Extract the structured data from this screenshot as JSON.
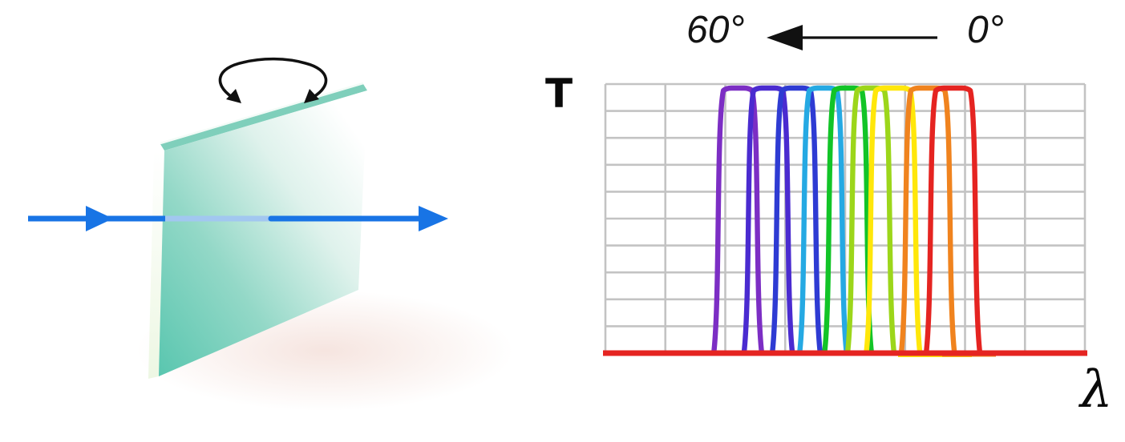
{
  "labels": {
    "y_axis": "T",
    "x_axis": "λ",
    "tilt_max": "60°",
    "tilt_min": "0°"
  },
  "colors": {
    "beam": "#1874E5",
    "beam_light": "#A2C7F0",
    "ink": "#111111",
    "grid": "#C3C3C3",
    "plate_teal_deep": "#59C6AF",
    "plate_teal_mid": "#93D8C7",
    "plate_bevel": "#7FCFBB",
    "plate_edge_pale": "#EDF7E3",
    "shadow_pink": "#F4E0DA"
  },
  "chart_data": {
    "type": "line",
    "title": "",
    "xlabel": "λ",
    "ylabel": "T",
    "x_range_relative": [
      0,
      1
    ],
    "y_range": [
      0,
      1
    ],
    "grid": {
      "columns": 8,
      "rows": 10,
      "visible": true
    },
    "baseline_value": 0,
    "peak_value": 1,
    "legend": "none",
    "series": [
      {
        "name": "passband-violet",
        "color": "#7C2EC4",
        "band_start": 0.226,
        "band_end": 0.326,
        "peak": 1
      },
      {
        "name": "passband-indigo",
        "color": "#4A2BD0",
        "band_start": 0.289,
        "band_end": 0.39,
        "peak": 1
      },
      {
        "name": "passband-blue",
        "color": "#2E3BD3",
        "band_start": 0.348,
        "band_end": 0.448,
        "peak": 1
      },
      {
        "name": "passband-cyan",
        "color": "#25A9E3",
        "band_start": 0.405,
        "band_end": 0.503,
        "peak": 1
      },
      {
        "name": "passband-green",
        "color": "#12C427",
        "band_start": 0.457,
        "band_end": 0.555,
        "peak": 1
      },
      {
        "name": "passband-lime",
        "color": "#9CD61A",
        "band_start": 0.505,
        "band_end": 0.602,
        "peak": 1
      },
      {
        "name": "passband-yellow",
        "color": "#FFE70A",
        "band_start": 0.544,
        "band_end": 0.656,
        "peak": 1
      },
      {
        "name": "passband-orange",
        "color": "#F0831E",
        "band_start": 0.617,
        "band_end": 0.728,
        "peak": 1
      },
      {
        "name": "passband-red",
        "color": "#E52421",
        "band_start": 0.669,
        "band_end": 0.781,
        "peak": 1
      }
    ],
    "annotation": {
      "left_label": "60°",
      "right_label": "0°",
      "arrow_direction": "left"
    }
  }
}
